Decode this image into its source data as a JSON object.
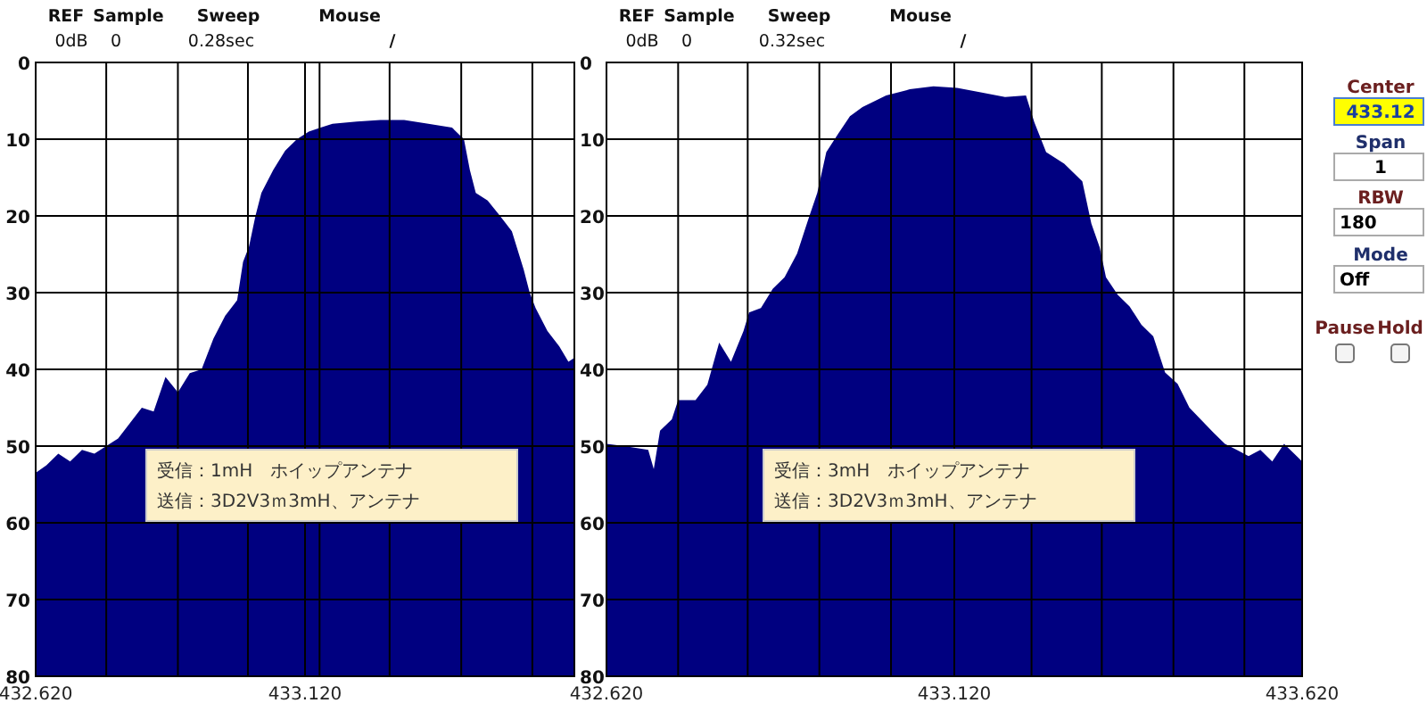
{
  "chart_data": [
    {
      "type": "area",
      "xlim": [
        432.62,
        433.62
      ],
      "ylim": [
        80,
        0
      ],
      "y2lim": [
        80,
        0
      ],
      "grid": true,
      "xticks": [
        {
          "value": 432.62,
          "label": "432.620"
        },
        {
          "value": 432.751,
          "label": null
        },
        {
          "value": 432.884,
          "label": null
        },
        {
          "value": 433.014,
          "label": null
        },
        {
          "value": 433.12,
          "label": "433.120"
        },
        {
          "value": 433.147,
          "label": null
        },
        {
          "value": 433.277,
          "label": null
        },
        {
          "value": 433.41,
          "label": null
        },
        {
          "value": 433.542,
          "label": null
        },
        {
          "value": 433.62,
          "label": null
        }
      ],
      "yticks": [
        0,
        10,
        20,
        30,
        40,
        50,
        60,
        70,
        80
      ],
      "y2ticks": [
        0,
        10,
        20,
        30,
        40,
        50,
        60,
        70,
        80
      ],
      "series": [
        {
          "color": "#000080",
          "x": [
            432.62,
            432.64,
            432.662,
            432.684,
            432.706,
            432.729,
            432.751,
            432.773,
            432.795,
            432.817,
            432.839,
            432.861,
            432.884,
            432.906,
            432.928,
            432.95,
            432.972,
            432.994,
            433.005,
            433.016,
            433.028,
            433.039,
            433.061,
            433.083,
            433.105,
            433.127,
            433.149,
            433.171,
            433.216,
            433.26,
            433.304,
            433.349,
            433.393,
            433.415,
            433.426,
            433.437,
            433.459,
            433.482,
            433.504,
            433.526,
            433.537,
            433.548,
            433.57,
            433.592,
            433.609,
            433.62
          ],
          "values": [
            53.5,
            52.5,
            51,
            52,
            50.5,
            51,
            50,
            49,
            47,
            45,
            45.5,
            41,
            43,
            40.5,
            40,
            36,
            33,
            31,
            26,
            24,
            20,
            17,
            14,
            11.5,
            10,
            9,
            8.5,
            8,
            7.7,
            7.5,
            7.5,
            8,
            8.5,
            10,
            14,
            17,
            18,
            20,
            22,
            27,
            30,
            32,
            35,
            37,
            39,
            38.5
          ]
        }
      ],
      "annotations": [
        "REF",
        "Sample",
        "Sweep",
        "Mouse",
        "0dB",
        "0",
        "0.28sec",
        "/",
        "受信：1mH　ホイップアンテナ",
        "送信：3D2V3ｍ3mH、アンテナ"
      ]
    },
    {
      "type": "area",
      "xlim": [
        432.62,
        433.62
      ],
      "ylim": [
        80,
        0
      ],
      "grid": true,
      "tick_labels": "x",
      "xticks": [
        {
          "value": 432.62,
          "label": "432.620"
        },
        {
          "value": 432.723,
          "label": null
        },
        {
          "value": 432.823,
          "label": null
        },
        {
          "value": 432.926,
          "label": null
        },
        {
          "value": 433.029,
          "label": null
        },
        {
          "value": 433.12,
          "label": "433.120"
        },
        {
          "value": 433.231,
          "label": null
        },
        {
          "value": 433.332,
          "label": null
        },
        {
          "value": 433.435,
          "label": null
        },
        {
          "value": 433.537,
          "label": null
        },
        {
          "value": 433.62,
          "label": "433.620"
        }
      ],
      "yticks": [
        0,
        10,
        20,
        30,
        40,
        50,
        60,
        70,
        80
      ],
      "series": [
        {
          "color": "#000080",
          "x": [
            432.62,
            432.646,
            432.68,
            432.688,
            432.697,
            432.714,
            432.723,
            432.748,
            432.765,
            432.782,
            432.799,
            432.817,
            432.825,
            432.842,
            432.859,
            432.876,
            432.894,
            432.911,
            432.923,
            432.936,
            432.953,
            432.97,
            432.988,
            433.022,
            433.056,
            433.09,
            433.124,
            433.158,
            433.193,
            433.223,
            433.235,
            433.252,
            433.278,
            433.304,
            433.317,
            433.329,
            433.338,
            433.355,
            433.372,
            433.389,
            433.406,
            433.423,
            433.441,
            433.458,
            433.475,
            433.492,
            433.509,
            433.526,
            433.543,
            433.56,
            433.577,
            433.594,
            433.62
          ],
          "values": [
            49.7,
            50,
            50.5,
            53,
            48,
            46.5,
            44,
            44,
            42,
            36.5,
            39,
            35,
            32.6,
            32,
            29.5,
            28,
            24.9,
            20.2,
            17,
            11.7,
            9.3,
            7,
            5.8,
            4.3,
            3.5,
            3.1,
            3.3,
            3.9,
            4.5,
            4.3,
            7.8,
            11.7,
            13.2,
            15.5,
            21,
            24.1,
            28,
            30.3,
            31.8,
            34.2,
            35.7,
            40.4,
            41.9,
            45,
            46.6,
            48.2,
            49.7,
            50.5,
            51.3,
            50.5,
            52,
            49.7,
            52
          ]
        }
      ],
      "annotations": [
        "REF",
        "Sample",
        "Sweep",
        "Mouse",
        "0dB",
        "0",
        "0.32sec",
        "/",
        "受信：3mH　ホイップアンテナ",
        "送信：3D2V3ｍ3mH、アンテナ"
      ]
    },
    {
      "type": "other",
      "annotations": [
        "Center",
        "433.12",
        "Span",
        "1",
        "RBW",
        "180",
        "Mode",
        "Off",
        "Pause",
        "Hold"
      ]
    }
  ]
}
